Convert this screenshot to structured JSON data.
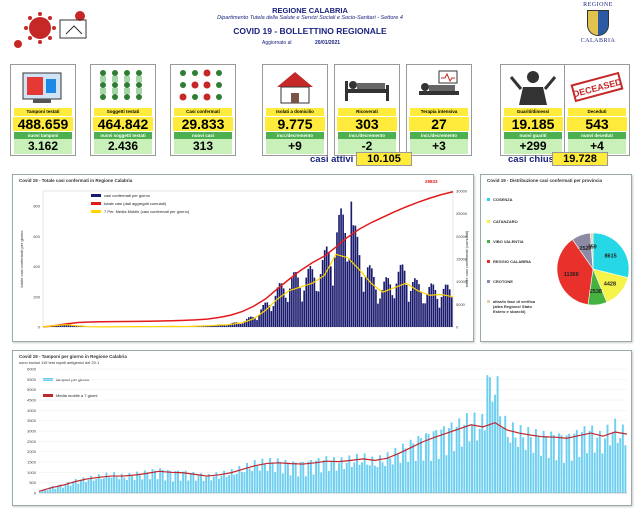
{
  "header": {
    "region": "REGIONE CALABRIA",
    "department": "Dipartimento Tutela della Salute e Servizi Sociali e Socio-Sanitari - Settore 4",
    "title": "COVID 19 - BOLLETTINO REGIONALE",
    "updated_label": "Aggiornato al",
    "updated_date": "20/01/2021",
    "crest_top": "REGIONE",
    "crest_bottom": "CALABRIA"
  },
  "cards": [
    {
      "label": "Tamponi testati",
      "value": "488.659",
      "sub_label": "nuovi tamponi",
      "sub_value": "3.162"
    },
    {
      "label": "Soggetti testati",
      "value": "464.842",
      "sub_label": "nuovi soggetti testati",
      "sub_value": "2.436"
    },
    {
      "label": "Casi confermati",
      "value": "29.833",
      "sub_label": "nuovi casi",
      "sub_value": "313"
    },
    {
      "label": "Isolati a domicilio",
      "value": "9.775",
      "sub_label": "incr./decremento",
      "sub_value": "+9"
    },
    {
      "label": "Ricoverati",
      "value": "303",
      "sub_label": "incr./decremento",
      "sub_value": "-2"
    },
    {
      "label": "Terapia intensiva",
      "value": "27",
      "sub_label": "incr./decremento",
      "sub_value": "+3"
    },
    {
      "label": "Guariti/dimessi",
      "value": "19.185",
      "sub_label": "nuovi guariti",
      "sub_value": "+299"
    },
    {
      "label": "Deceduti",
      "value": "543",
      "sub_label": "nuovi deceduti",
      "sub_value": "+4"
    }
  ],
  "deceased_stamp": "DECEASED",
  "totals": {
    "active_label": "casi attivi",
    "active_value": "10.105",
    "closed_label": "casi chiusi",
    "closed_value": "19.728"
  },
  "chart_data": [
    {
      "type": "bar",
      "title": "Covid 19 - Totale casi confermati in Regione Calabria",
      "final_label": "29833",
      "ylim_left": [
        0,
        900
      ],
      "ylim_right": [
        0,
        30000
      ],
      "y_ticks_left": [
        "0",
        "200",
        "400",
        "600",
        "800"
      ],
      "y_ticks_right": [
        "0",
        "5000",
        "10000",
        "15000",
        "20000",
        "25000",
        "30000"
      ],
      "ylabel_left": "totale casi confermati per giorno",
      "ylabel_right": "totale casi confermati (cumulati)",
      "series": [
        {
          "name": "casi confermati per giorno",
          "type": "bar",
          "color": "#1a1a6e",
          "weekly_avg_values": [
            0,
            12,
            18,
            8,
            2,
            1,
            1,
            2,
            3,
            2,
            3,
            4,
            3,
            5,
            8,
            12,
            18,
            30,
            60,
            120,
            200,
            260,
            280,
            300,
            360,
            520,
            640,
            440,
            300,
            220,
            280,
            320,
            230,
            210,
            220,
            200
          ]
        },
        {
          "name": "totale casi (dati aggregati cumulati)",
          "type": "line",
          "color": "#e31a1c",
          "values": [
            0,
            300,
            700,
            1000,
            1100,
            1150,
            1180,
            1210,
            1240,
            1280,
            1330,
            1380,
            1450,
            1560,
            1750,
            2100,
            2600,
            3400,
            4600,
            6200,
            8400,
            10500,
            12500,
            14200,
            15600,
            17600,
            19800,
            21600,
            23000,
            24200,
            25400,
            26500,
            27500,
            28400,
            29200,
            29833
          ]
        },
        {
          "name": "7 Per. Media Mobile (casi confermati per giorno)",
          "type": "line",
          "color": "#ffd400",
          "values": [
            0,
            10,
            15,
            7,
            2,
            1,
            1,
            2,
            3,
            2,
            3,
            4,
            3,
            5,
            8,
            12,
            16,
            28,
            55,
            110,
            185,
            240,
            265,
            290,
            340,
            480,
            460,
            380,
            290,
            230,
            260,
            290,
            240,
            210,
            215,
            200
          ]
        }
      ]
    },
    {
      "type": "pie",
      "title": "Covid 19 - Distribuzione casi confermati per provincia",
      "slices": [
        {
          "name": "COSENZA",
          "value": 8615,
          "color": "#26d7e6"
        },
        {
          "name": "CATANZARO",
          "value": 4428,
          "color": "#f6f34a"
        },
        {
          "name": "VIBO VALENTIA",
          "value": 2538,
          "color": "#45b23f"
        },
        {
          "name": "REGGIO CALABRIA",
          "value": 11366,
          "color": "#e8312a"
        },
        {
          "name": "CROTONE",
          "value": 2527,
          "color": "#8d8aa6"
        },
        {
          "name": "altra/in fase di verifica (altra Regione/ Stato Estero e sbarchi)",
          "value": 359,
          "color": "#e0d3a8"
        }
      ]
    },
    {
      "type": "bar",
      "title": "Covid 19 - Tamponi per giorno in Regione Calabria",
      "subtitle": "sono inclusi 119 test rapidi antigenici del 20.1",
      "ylim": [
        0,
        6000
      ],
      "y_ticks": [
        "0",
        "500",
        "1000",
        "1500",
        "2000",
        "2500",
        "3000",
        "3500",
        "4000",
        "4500",
        "5000",
        "5500",
        "6000"
      ],
      "series": [
        {
          "name": "tamponi per giorno",
          "type": "bar",
          "color": "#6ecff0",
          "values": [
            100,
            300,
            400,
            600,
            700,
            800,
            900,
            800,
            900,
            1000,
            1100,
            1000,
            1000,
            900,
            800,
            900,
            1000,
            1200,
            1400,
            1500,
            1500,
            1400,
            1400,
            1500,
            1600,
            1500,
            1600,
            1700,
            1500,
            1700,
            2000,
            2300,
            2600,
            2800,
            3000,
            3200,
            3500,
            3300,
            5700,
            3100,
            2900,
            2800,
            2700,
            2700,
            2600,
            2800,
            3000,
            2600,
            3200,
            2800
          ]
        },
        {
          "name": "Media mobile a 7 giorni",
          "type": "line",
          "color": "#c0262e",
          "values": [
            80,
            250,
            380,
            550,
            680,
            760,
            820,
            820,
            870,
            950,
            1050,
            1000,
            980,
            900,
            820,
            880,
            980,
            1150,
            1320,
            1430,
            1460,
            1420,
            1400,
            1460,
            1540,
            1520,
            1580,
            1650,
            1580,
            1680,
            1920,
            2200,
            2480,
            2700,
            2900,
            3100,
            3300,
            3200,
            3400,
            3050,
            2900,
            2800,
            2720,
            2700,
            2650,
            2780,
            2900,
            2750,
            2950,
            2850
          ]
        }
      ]
    }
  ]
}
